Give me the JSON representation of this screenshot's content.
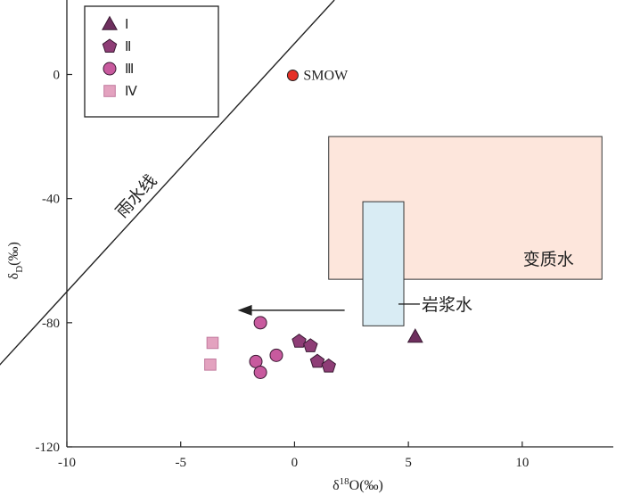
{
  "chart_data": {
    "type": "scatter",
    "xlabel": "δ18O(‰)",
    "ylabel": "δD(‰)",
    "xlim": [
      -10,
      14
    ],
    "ylim": [
      -120,
      24
    ],
    "xticks": [
      -10,
      -5,
      0,
      5,
      10
    ],
    "yticks": [
      -120,
      -80,
      -40,
      0
    ],
    "grid": false,
    "legend_position": "top-left",
    "series": [
      {
        "name": "Ⅰ",
        "marker": "triangle",
        "color": "#6e2f5e",
        "points": [
          [
            5.3,
            -84.5
          ]
        ]
      },
      {
        "name": "Ⅱ",
        "marker": "pentagon",
        "color": "#8e3d76",
        "points": [
          [
            0.2,
            -86
          ],
          [
            0.7,
            -87.5
          ],
          [
            1.0,
            -92.5
          ],
          [
            1.5,
            -94
          ]
        ]
      },
      {
        "name": "Ⅲ",
        "marker": "circle",
        "color": "#c85a9e",
        "points": [
          [
            -1.5,
            -80
          ],
          [
            -0.8,
            -90.5
          ],
          [
            -1.7,
            -92.5
          ],
          [
            -1.5,
            -96
          ]
        ]
      },
      {
        "name": "Ⅳ",
        "marker": "square",
        "color": "#e3a2bf",
        "points": [
          [
            -3.6,
            -86.5
          ],
          [
            -3.7,
            -93.5
          ]
        ]
      }
    ],
    "reference_points": [
      {
        "label": "SMOW",
        "x": 0,
        "y": 0,
        "color": "#e53027"
      }
    ],
    "reference_lines": [
      {
        "label": "雨水线",
        "description": "δD = 8·δ18O + 10"
      }
    ],
    "regions": [
      {
        "label": "变质水",
        "x": [
          1.5,
          13.5
        ],
        "y": [
          -66,
          -20
        ],
        "color": "#fde6dc"
      },
      {
        "label": "岩浆水",
        "x": [
          3,
          4.8
        ],
        "y": [
          -81,
          -41
        ],
        "color": "#d9ecf4"
      }
    ],
    "arrow": {
      "from": [
        2.2,
        -76
      ],
      "to": [
        -2.5,
        -76
      ]
    }
  }
}
